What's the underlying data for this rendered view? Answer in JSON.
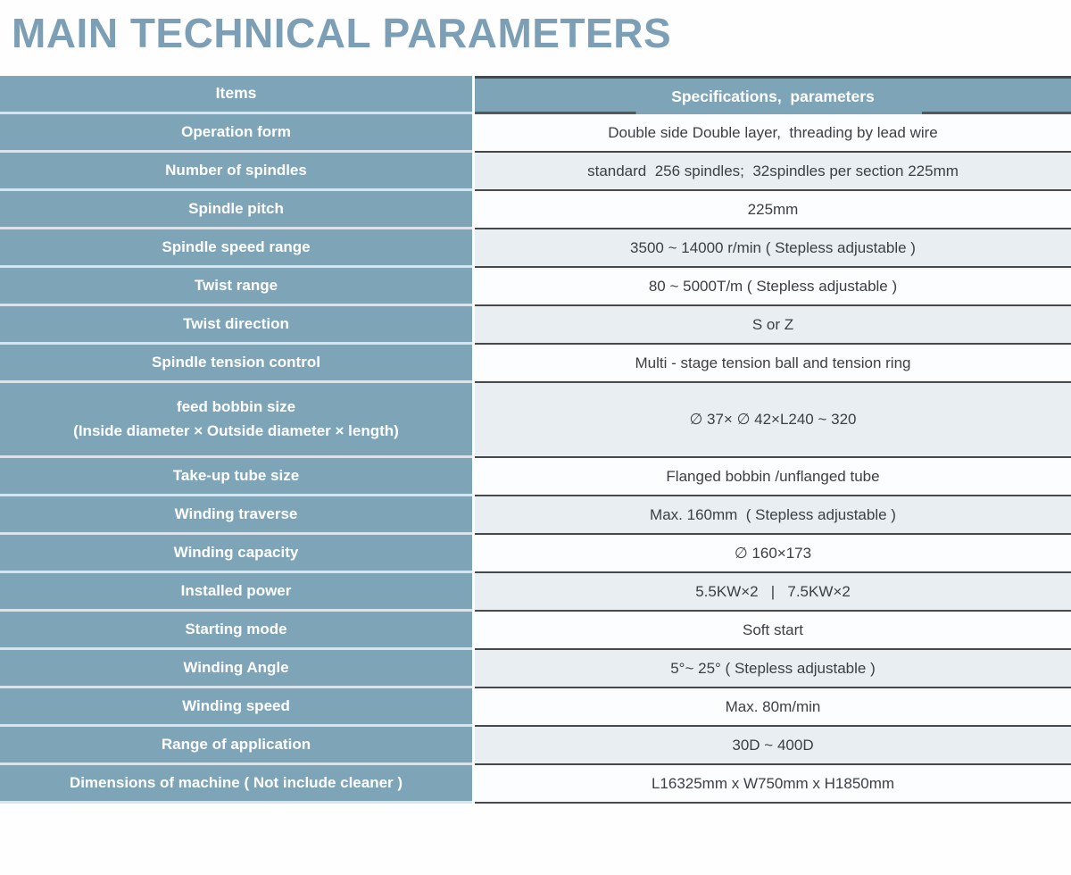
{
  "title": "MAIN TECHNICAL PARAMETERS",
  "colors": {
    "header_bg": "#7DA5B7",
    "title_text": "#7C9FB5",
    "dark_border": "#46494c",
    "light_separator": "#d9e3e9",
    "row_tint": "#e9eef2",
    "row_white": "#fcfdfe",
    "value_text": "#3b4045"
  },
  "table": {
    "header": {
      "items": "Items",
      "specs": "Specifications,  parameters"
    },
    "rows": [
      {
        "label": "Operation form",
        "value": "Double side Double layer,  threading by lead wire"
      },
      {
        "label": "Number of spindles",
        "value": "standard  256 spindles;  32spindles per section 225mm"
      },
      {
        "label": "Spindle pitch",
        "value": "225mm"
      },
      {
        "label": "Spindle speed range",
        "value": "3500 ~ 14000 r/min ( Stepless adjustable )"
      },
      {
        "label": "Twist range",
        "value": "80 ~ 5000T/m ( Stepless adjustable )"
      },
      {
        "label": "Twist direction",
        "value": "S or Z"
      },
      {
        "label": "Spindle tension control",
        "value": "Multi - stage tension ball and tension ring"
      },
      {
        "label": "feed bobbin size",
        "label2": "(Inside diameter × Outside diameter × length)",
        "value": "∅ 37× ∅ 42×L240 ~ 320",
        "tall": true
      },
      {
        "label": "Take-up tube size",
        "value": "Flanged bobbin /unflanged tube"
      },
      {
        "label": "Winding traverse",
        "value": "Max. 160mm  ( Stepless adjustable )"
      },
      {
        "label": "Winding capacity",
        "value": "∅ 160×173"
      },
      {
        "label": "Installed power",
        "value": "5.5KW×2   |   7.5KW×2"
      },
      {
        "label": "Starting mode",
        "value": "Soft start"
      },
      {
        "label": "Winding Angle",
        "value": "5°~ 25° ( Stepless adjustable )"
      },
      {
        "label": "Winding speed",
        "value": "Max. 80m/min"
      },
      {
        "label": "Range of application",
        "value": "30D ~ 400D"
      },
      {
        "label": "Dimensions of machine ( Not include cleaner )",
        "value": "L16325mm x W750mm x H1850mm"
      }
    ]
  }
}
